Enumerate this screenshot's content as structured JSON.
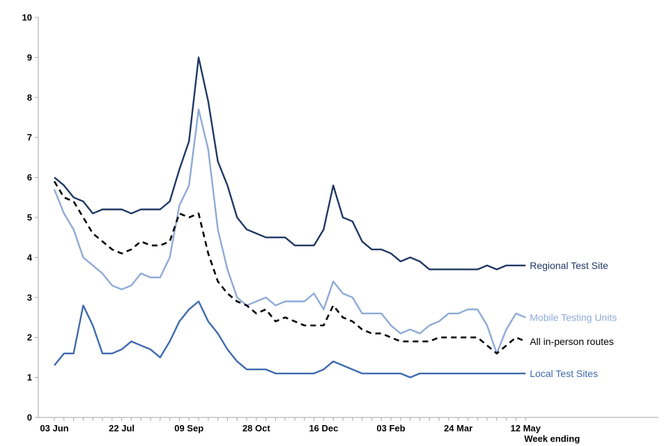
{
  "chart_data": {
    "type": "line",
    "title": "",
    "xlabel": "Week ending",
    "ylabel": "",
    "ylim": [
      0,
      10
    ],
    "yticks": [
      "0",
      "1",
      "2",
      "3",
      "4",
      "5",
      "6",
      "7",
      "8",
      "9",
      "10"
    ],
    "x_tick_labels": [
      "03 Jun",
      "22 Jul",
      "09 Sep",
      "28 Oct",
      "16 Dec",
      "03 Feb",
      "24 Mar",
      "12 May"
    ],
    "x_tick_week_index": [
      0,
      7,
      14,
      21,
      28,
      35,
      42,
      49
    ],
    "grid": false,
    "legend": "labels at line ends, right",
    "series": [
      {
        "name": "Regional Test Site",
        "color": "#1f3864",
        "style": "solid",
        "values": [
          6.0,
          5.8,
          5.5,
          5.4,
          5.1,
          5.2,
          5.2,
          5.2,
          5.1,
          5.2,
          5.2,
          5.2,
          5.4,
          6.2,
          6.9,
          9.0,
          7.9,
          6.4,
          5.8,
          5.0,
          4.7,
          4.6,
          4.5,
          4.5,
          4.5,
          4.3,
          4.3,
          4.3,
          4.7,
          5.8,
          5.0,
          4.9,
          4.4,
          4.2,
          4.2,
          4.1,
          3.9,
          4.0,
          3.9,
          3.7,
          3.7,
          3.7,
          3.7,
          3.7,
          3.7,
          3.8,
          3.7,
          3.8,
          3.8,
          3.8
        ]
      },
      {
        "name": "Mobile Testing Units",
        "color": "#8eaad7",
        "style": "solid",
        "values": [
          5.7,
          5.1,
          4.7,
          4.0,
          3.8,
          3.6,
          3.3,
          3.2,
          3.3,
          3.6,
          3.5,
          3.5,
          4.0,
          5.3,
          5.8,
          7.7,
          6.7,
          4.7,
          3.7,
          3.0,
          2.8,
          2.9,
          3.0,
          2.8,
          2.9,
          2.9,
          2.9,
          3.1,
          2.7,
          3.4,
          3.1,
          3.0,
          2.6,
          2.6,
          2.6,
          2.3,
          2.1,
          2.2,
          2.1,
          2.3,
          2.4,
          2.6,
          2.6,
          2.7,
          2.7,
          2.3,
          1.6,
          2.2,
          2.6,
          2.5
        ]
      },
      {
        "name": "All in-person routes",
        "color": "#000000",
        "style": "dashed",
        "values": [
          5.9,
          5.5,
          5.4,
          5.0,
          4.6,
          4.4,
          4.2,
          4.1,
          4.2,
          4.4,
          4.3,
          4.3,
          4.4,
          5.1,
          5.0,
          5.1,
          4.1,
          3.4,
          3.1,
          2.9,
          2.8,
          2.6,
          2.7,
          2.4,
          2.5,
          2.4,
          2.3,
          2.3,
          2.3,
          2.8,
          2.5,
          2.4,
          2.2,
          2.1,
          2.1,
          2.0,
          1.9,
          1.9,
          1.9,
          1.9,
          2.0,
          2.0,
          2.0,
          2.0,
          2.0,
          1.8,
          1.6,
          1.8,
          2.0,
          1.9
        ]
      },
      {
        "name": "Local Test Sites",
        "color": "#3e6aae",
        "style": "solid",
        "values": [
          1.3,
          1.6,
          1.6,
          2.8,
          2.3,
          1.6,
          1.6,
          1.7,
          1.9,
          1.8,
          1.7,
          1.5,
          1.9,
          2.4,
          2.7,
          2.9,
          2.4,
          2.1,
          1.7,
          1.4,
          1.2,
          1.2,
          1.2,
          1.1,
          1.1,
          1.1,
          1.1,
          1.1,
          1.2,
          1.4,
          1.3,
          1.2,
          1.1,
          1.1,
          1.1,
          1.1,
          1.1,
          1.0,
          1.1,
          1.1,
          1.1,
          1.1,
          1.1,
          1.1,
          1.1,
          1.1,
          1.1,
          1.1,
          1.1,
          1.1
        ]
      }
    ]
  }
}
